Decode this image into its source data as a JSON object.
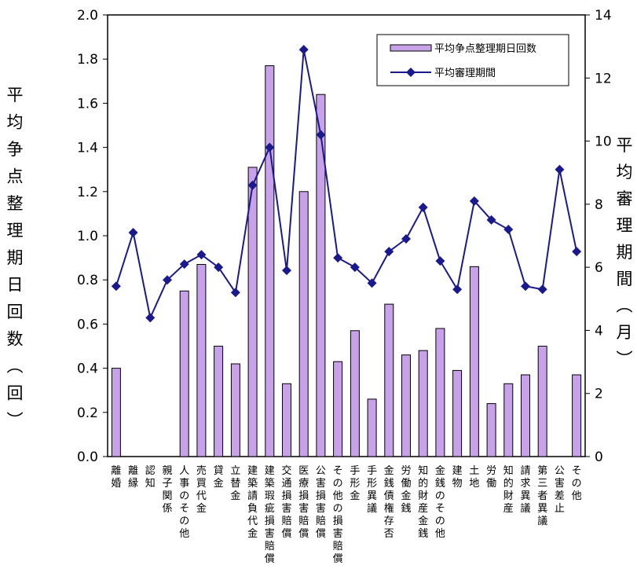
{
  "chart_data": {
    "type": "bar",
    "categories": [
      "離婚",
      "離縁",
      "認知",
      "親子関係",
      "人事のその他",
      "売買代金",
      "貸金",
      "立替金",
      "建築請負代金",
      "建築瑕疵損害賠償",
      "交通損害賠償",
      "医療損害賠償",
      "公害損害賠償",
      "その他の損害賠償",
      "手形金",
      "手形異議",
      "金銭債権存否",
      "労働金銭",
      "知的財産金銭",
      "金銭のその他",
      "建物",
      "土地",
      "労働",
      "知的財産",
      "請求異議",
      "第三者異議",
      "公害差止",
      "その他"
    ],
    "series": [
      {
        "name": "平均争点整理期日回数",
        "type": "bar",
        "axis": "left",
        "color": "#c8a2e8",
        "values": [
          0.4,
          null,
          null,
          null,
          0.75,
          0.87,
          0.5,
          0.42,
          1.31,
          1.77,
          0.33,
          1.2,
          1.64,
          0.43,
          0.57,
          0.26,
          0.69,
          0.46,
          0.48,
          0.58,
          0.39,
          0.86,
          0.24,
          0.33,
          0.37,
          0.5,
          null,
          0.37
        ]
      },
      {
        "name": "平均審理期間",
        "type": "line",
        "axis": "right",
        "color": "#1a1a8c",
        "values": [
          5.4,
          7.1,
          4.4,
          5.6,
          6.1,
          6.4,
          6.0,
          5.2,
          8.6,
          9.8,
          5.9,
          12.9,
          10.2,
          6.3,
          6.0,
          5.5,
          6.5,
          6.9,
          7.9,
          6.2,
          5.3,
          8.1,
          7.5,
          7.2,
          5.4,
          5.3,
          9.1,
          6.5
        ]
      }
    ],
    "y_left": {
      "label": "平均争点整理期日回数（回）",
      "range": [
        0,
        2.0
      ],
      "ticks": [
        "0.0",
        "0.2",
        "0.4",
        "0.6",
        "0.8",
        "1.0",
        "1.2",
        "1.4",
        "1.6",
        "1.8",
        "2.0"
      ]
    },
    "y_right": {
      "label": "平均審理期間（月）",
      "range": [
        0,
        14
      ],
      "ticks": [
        "0",
        "2",
        "4",
        "6",
        "8",
        "10",
        "12",
        "14"
      ]
    },
    "legend": {
      "position": "top-right",
      "items": [
        "平均争点整理期日回数",
        "平均審理期間"
      ]
    },
    "grid": false
  }
}
